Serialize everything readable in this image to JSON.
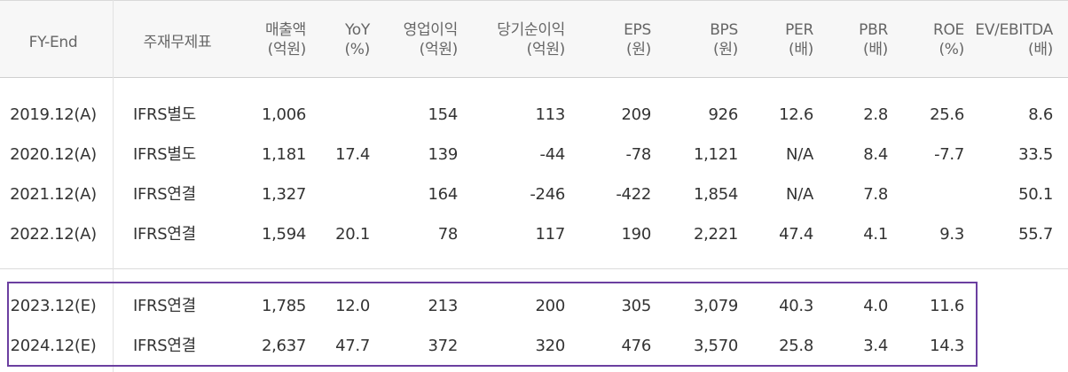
{
  "table": {
    "columns": [
      {
        "key": "fy",
        "line1": "FY-End",
        "line2": ""
      },
      {
        "key": "type",
        "line1": "주재무제표",
        "line2": ""
      },
      {
        "key": "sales",
        "line1": "매출액",
        "line2": "(억원)"
      },
      {
        "key": "yoy",
        "line1": "YoY",
        "line2": "(%)"
      },
      {
        "key": "op",
        "line1": "영업이익",
        "line2": "(억원)"
      },
      {
        "key": "net",
        "line1": "당기순이익",
        "line2": "(억원)"
      },
      {
        "key": "eps",
        "line1": "EPS",
        "line2": "(원)"
      },
      {
        "key": "bps",
        "line1": "BPS",
        "line2": "(원)"
      },
      {
        "key": "per",
        "line1": "PER",
        "line2": "(배)"
      },
      {
        "key": "pbr",
        "line1": "PBR",
        "line2": "(배)"
      },
      {
        "key": "roe",
        "line1": "ROE",
        "line2": "(%)"
      },
      {
        "key": "ev",
        "line1": "EV/EBITDA",
        "line2": "(배)"
      }
    ],
    "actual_rows": [
      {
        "fy": "2019.12(A)",
        "type": "IFRS별도",
        "sales": "1,006",
        "yoy": "",
        "op": "154",
        "net": "113",
        "eps": "209",
        "bps": "926",
        "per": "12.6",
        "pbr": "2.8",
        "roe": "25.6",
        "ev": "8.6"
      },
      {
        "fy": "2020.12(A)",
        "type": "IFRS별도",
        "sales": "1,181",
        "yoy": "17.4",
        "op": "139",
        "net": "-44",
        "eps": "-78",
        "bps": "1,121",
        "per": "N/A",
        "pbr": "8.4",
        "roe": "-7.7",
        "ev": "33.5"
      },
      {
        "fy": "2021.12(A)",
        "type": "IFRS연결",
        "sales": "1,327",
        "yoy": "",
        "op": "164",
        "net": "-246",
        "eps": "-422",
        "bps": "1,854",
        "per": "N/A",
        "pbr": "7.8",
        "roe": "",
        "ev": "50.1"
      },
      {
        "fy": "2022.12(A)",
        "type": "IFRS연결",
        "sales": "1,594",
        "yoy": "20.1",
        "op": "78",
        "net": "117",
        "eps": "190",
        "bps": "2,221",
        "per": "47.4",
        "pbr": "4.1",
        "roe": "9.3",
        "ev": "55.7"
      }
    ],
    "estimate_rows": [
      {
        "fy": "2023.12(E)",
        "type": "IFRS연결",
        "sales": "1,785",
        "yoy": "12.0",
        "op": "213",
        "net": "200",
        "eps": "305",
        "bps": "3,079",
        "per": "40.3",
        "pbr": "4.0",
        "roe": "11.6",
        "ev": ""
      },
      {
        "fy": "2024.12(E)",
        "type": "IFRS연결",
        "sales": "2,637",
        "yoy": "47.7",
        "op": "372",
        "net": "320",
        "eps": "476",
        "bps": "3,570",
        "per": "25.8",
        "pbr": "3.4",
        "roe": "14.3",
        "ev": ""
      }
    ],
    "highlight_color": "#6b3fa0"
  }
}
